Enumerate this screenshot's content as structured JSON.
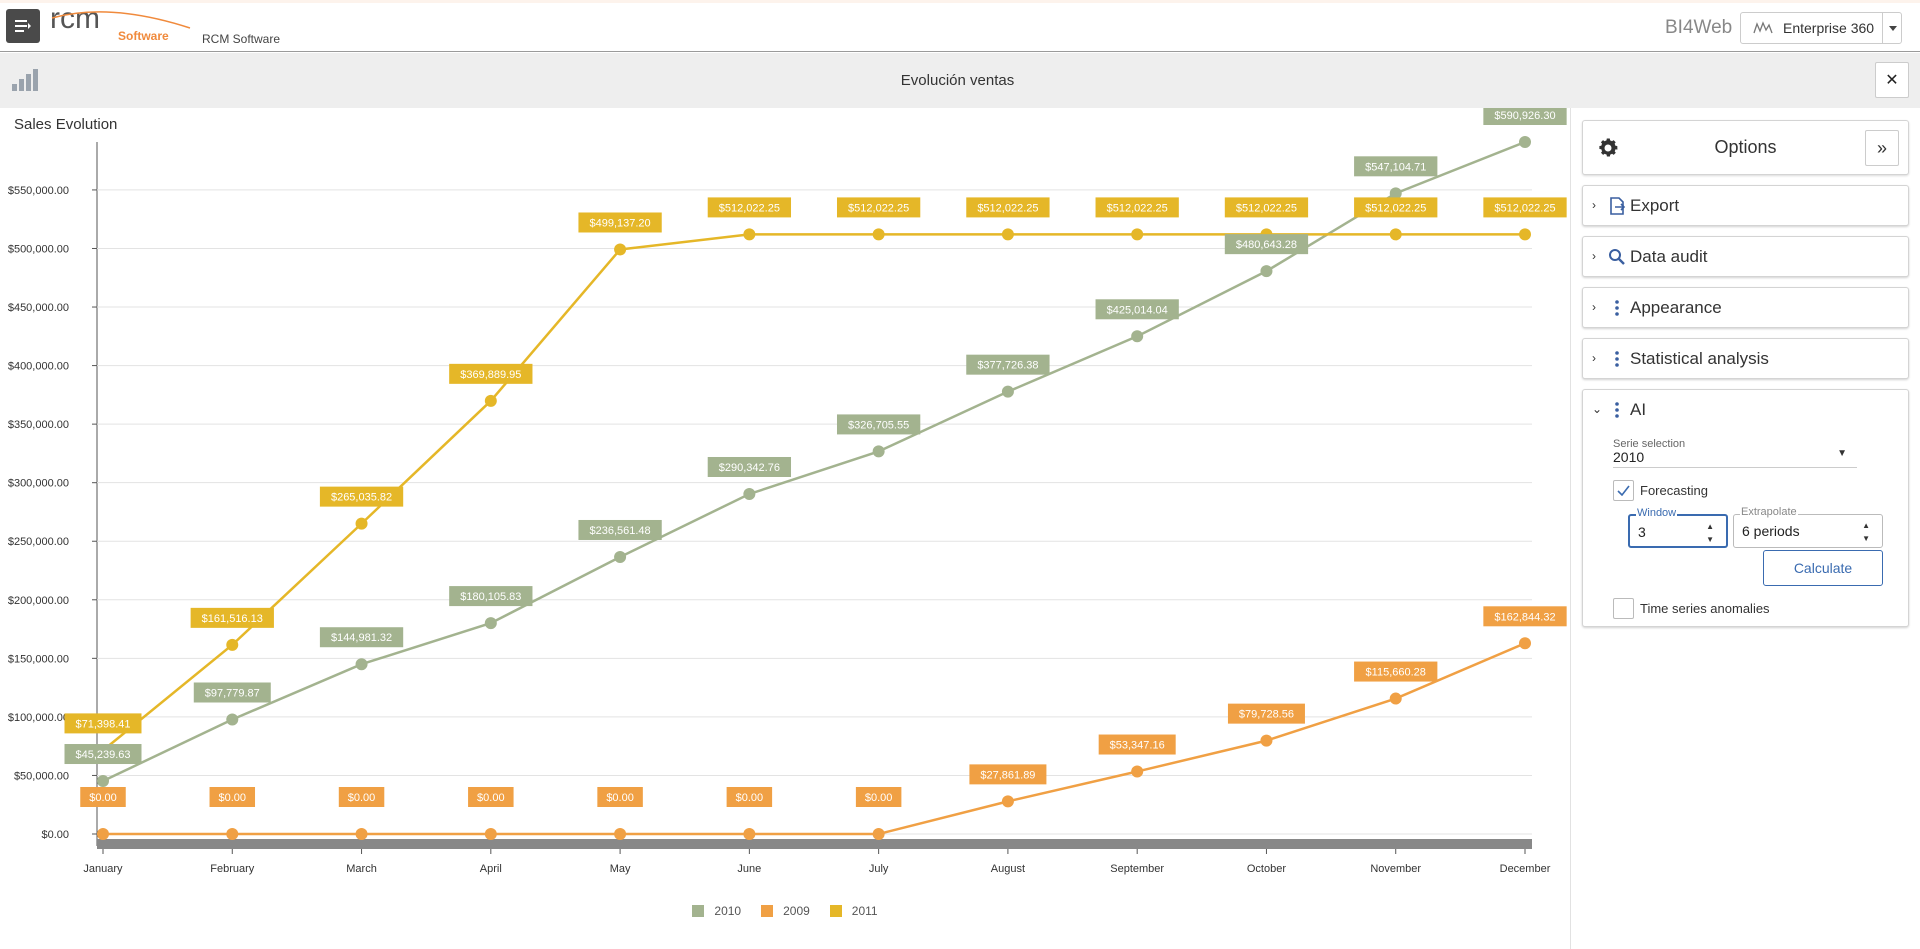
{
  "header": {
    "logo_text": "rcm",
    "logo_subtext": "Software",
    "brand": "RCM Software",
    "product": "BI4Web",
    "enterprise": "Enterprise 360"
  },
  "view": {
    "title": "Evolución ventas",
    "close_label": "✕"
  },
  "panel": {
    "title": "Options",
    "collapse_label": "»",
    "sections": [
      {
        "label": "Export",
        "icon": "export-icon"
      },
      {
        "label": "Data audit",
        "icon": "search-icon"
      },
      {
        "label": "Appearance",
        "icon": "vertical-dots-icon"
      },
      {
        "label": "Statistical analysis",
        "icon": "vertical-dots-icon"
      }
    ],
    "ai": {
      "label": "AI",
      "serie_label": "Serie selection",
      "serie_value": "2010",
      "forecasting_label": "Forecasting",
      "forecasting_checked": true,
      "window_label": "Window",
      "window_value": "3",
      "extrapolate_label": "Extrapolate",
      "extrapolate_value": "6 periods",
      "calculate_label": "Calculate",
      "anomalies_label": "Time series anomalies",
      "anomalies_checked": false
    }
  },
  "colors": {
    "s2010": "#a3b38f",
    "s2009": "#f0a044",
    "s2011": "#e5b728",
    "accent": "#3a6bb0"
  },
  "chart_data": {
    "type": "line",
    "title": "Sales Evolution",
    "categories": [
      "January",
      "February",
      "March",
      "April",
      "May",
      "June",
      "July",
      "August",
      "September",
      "October",
      "November",
      "December"
    ],
    "ylim": [
      0,
      590926.3
    ],
    "yticks": [
      "$0.00",
      "$50,000.00",
      "$100,000.00",
      "$150,000.00",
      "$200,000.00",
      "$250,000.00",
      "$300,000.00",
      "$350,000.00",
      "$400,000.00",
      "$450,000.00",
      "$500,000.00",
      "$550,000.00"
    ],
    "ytick_values": [
      0,
      50000,
      100000,
      150000,
      200000,
      250000,
      300000,
      350000,
      400000,
      450000,
      500000,
      550000
    ],
    "grid": true,
    "legend_position": "bottom",
    "series": [
      {
        "name": "2010",
        "color": "#a3b38f",
        "values": [
          45239.63,
          97779.87,
          144981.32,
          180105.83,
          236561.48,
          290342.76,
          326705.55,
          377726.38,
          425014.04,
          480643.28,
          547104.71,
          590926.3
        ],
        "labels": [
          "$45,239.63",
          "$97,779.87",
          "$144,981.32",
          "$180,105.83",
          "$236,561.48",
          "$290,342.76",
          "$326,705.55",
          "$377,726.38",
          "$425,014.04",
          "$480,643.28",
          "$547,104.71",
          "$590,926.30"
        ]
      },
      {
        "name": "2009",
        "color": "#f0a044",
        "values": [
          0,
          0,
          0,
          0,
          0,
          0,
          0,
          27861.89,
          53347.16,
          79728.56,
          115660.28,
          162844.32
        ],
        "labels": [
          "$0.00",
          "$0.00",
          "$0.00",
          "$0.00",
          "$0.00",
          "$0.00",
          "$0.00",
          "$27,861.89",
          "$53,347.16",
          "$79,728.56",
          "$115,660.28",
          "$162,844.32"
        ]
      },
      {
        "name": "2011",
        "color": "#e5b728",
        "values": [
          71398.41,
          161516.13,
          265035.82,
          369889.95,
          499137.2,
          512022.25,
          512022.25,
          512022.25,
          512022.25,
          512022.25,
          512022.25,
          512022.25
        ],
        "labels": [
          "$71,398.41",
          "$161,516.13",
          "$265,035.82",
          "$369,889.95",
          "$499,137.20",
          "$512,022.25",
          "$512,022.25",
          "$512,022.25",
          "$512,022.25",
          "$512,022.25",
          "$512,022.25",
          "$512,022.25"
        ]
      }
    ]
  }
}
